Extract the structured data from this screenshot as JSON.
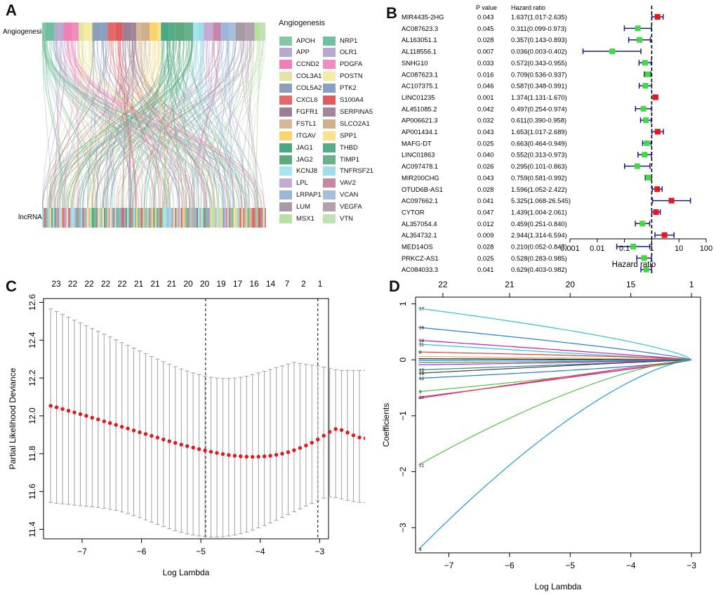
{
  "panels": {
    "A": {
      "letter": "A",
      "top_label": "Angiogenesis",
      "bottom_label": "lncRNA",
      "legend_title": "Angiogenesis"
    },
    "B": {
      "letter": "B",
      "col_p": "P value",
      "col_hr": "Hazard ratio",
      "xlabel": "Hazard ratio"
    },
    "C": {
      "letter": "C",
      "xlabel": "Log Lambda",
      "ylabel": "Partial Likelihood Deviance"
    },
    "D": {
      "letter": "D",
      "xlabel": "Log Lambda",
      "ylabel": "Coefficients"
    }
  },
  "chart_data": [
    {
      "type": "sankey",
      "panel": "A",
      "legend_title": "Angiogenesis",
      "legend": [
        {
          "name": "APOH",
          "color": "#86c7a5"
        },
        {
          "name": "NRP1",
          "color": "#6fc0a1"
        },
        {
          "name": "APP",
          "color": "#b6a8cf"
        },
        {
          "name": "OLR1",
          "color": "#b9a9d0"
        },
        {
          "name": "CCND2",
          "color": "#f07fb5"
        },
        {
          "name": "PDGFA",
          "color": "#ef8ebc"
        },
        {
          "name": "COL3A1",
          "color": "#e6e1a4"
        },
        {
          "name": "POSTN",
          "color": "#f3eca5"
        },
        {
          "name": "COL5A2",
          "color": "#8a9fba"
        },
        {
          "name": "PTK2",
          "color": "#8aa0c2"
        },
        {
          "name": "CXCL6",
          "color": "#e46a6a"
        },
        {
          "name": "S100A4",
          "color": "#e05c5c"
        },
        {
          "name": "FGFR1",
          "color": "#9c7f95"
        },
        {
          "name": "SERPINA5",
          "color": "#a08899"
        },
        {
          "name": "FSTL1",
          "color": "#d6b896"
        },
        {
          "name": "SLCO2A1",
          "color": "#cfb08b"
        },
        {
          "name": "ITGAV",
          "color": "#fbd56b"
        },
        {
          "name": "SPP1",
          "color": "#fde08a"
        },
        {
          "name": "JAG1",
          "color": "#4ba884"
        },
        {
          "name": "THBD",
          "color": "#54ac88"
        },
        {
          "name": "JAG2",
          "color": "#5caa7e"
        },
        {
          "name": "TIMP1",
          "color": "#69b08c"
        },
        {
          "name": "KCNJ8",
          "color": "#a9e2f0"
        },
        {
          "name": "TNFRSF21",
          "color": "#9fdde9"
        },
        {
          "name": "LPL",
          "color": "#c5aad6"
        },
        {
          "name": "VAV2",
          "color": "#c587a3"
        },
        {
          "name": "LRPAP1",
          "color": "#9bb6d8"
        },
        {
          "name": "VCAN",
          "color": "#a4bedc"
        },
        {
          "name": "LUM",
          "color": "#a79aa5"
        },
        {
          "name": "VEGFA",
          "color": "#b3a1ad"
        },
        {
          "name": "MSX1",
          "color": "#b7e1a4"
        },
        {
          "name": "VTN",
          "color": "#bfe2b4"
        }
      ]
    },
    {
      "type": "forest",
      "panel": "B",
      "xscale": "log",
      "xlim": [
        0.001,
        100
      ],
      "xticks": [
        "0.001",
        "0.01",
        "0.1",
        "1",
        "10",
        "100"
      ],
      "reference_line": 1,
      "rows": [
        {
          "gene": "MIR4435-2HG",
          "p": "0.043",
          "hr_text": "1.637(1.017-2.635)",
          "hr": 1.637,
          "lo": 1.017,
          "hi": 2.635
        },
        {
          "gene": "AC087623.3",
          "p": "0.045",
          "hr_text": "0.311(0.099-0.973)",
          "hr": 0.311,
          "lo": 0.099,
          "hi": 0.973
        },
        {
          "gene": "AL163051.1",
          "p": "0.028",
          "hr_text": "0.357(0.143-0.893)",
          "hr": 0.357,
          "lo": 0.143,
          "hi": 0.893
        },
        {
          "gene": "AL118556.1",
          "p": "0.007",
          "hr_text": "0.036(0.003-0.402)",
          "hr": 0.036,
          "lo": 0.003,
          "hi": 0.402
        },
        {
          "gene": "SNHG10",
          "p": "0.033",
          "hr_text": "0.572(0.343-0.955)",
          "hr": 0.572,
          "lo": 0.343,
          "hi": 0.955
        },
        {
          "gene": "AC087623.1",
          "p": "0.016",
          "hr_text": "0.709(0.536-0.937)",
          "hr": 0.709,
          "lo": 0.536,
          "hi": 0.937
        },
        {
          "gene": "AC107375.1",
          "p": "0.046",
          "hr_text": "0.587(0.348-0.991)",
          "hr": 0.587,
          "lo": 0.348,
          "hi": 0.991
        },
        {
          "gene": "LINC01235",
          "p": "0.001",
          "hr_text": "1.374(1.131-1.670)",
          "hr": 1.374,
          "lo": 1.131,
          "hi": 1.67
        },
        {
          "gene": "AL451085.2",
          "p": "0.042",
          "hr_text": "0.497(0.254-0.974)",
          "hr": 0.497,
          "lo": 0.254,
          "hi": 0.974
        },
        {
          "gene": "AP006621.3",
          "p": "0.032",
          "hr_text": "0.611(0.390-0.958)",
          "hr": 0.611,
          "lo": 0.39,
          "hi": 0.958
        },
        {
          "gene": "AP001434.1",
          "p": "0.043",
          "hr_text": "1.653(1.017-2.689)",
          "hr": 1.653,
          "lo": 1.017,
          "hi": 2.689
        },
        {
          "gene": "MAFG-DT",
          "p": "0.025",
          "hr_text": "0.663(0.464-0.949)",
          "hr": 0.663,
          "lo": 0.464,
          "hi": 0.949
        },
        {
          "gene": "LINC01863",
          "p": "0.040",
          "hr_text": "0.552(0.313-0.973)",
          "hr": 0.552,
          "lo": 0.313,
          "hi": 0.973
        },
        {
          "gene": "AC097478.1",
          "p": "0.026",
          "hr_text": "0.295(0.101-0.863)",
          "hr": 0.295,
          "lo": 0.101,
          "hi": 0.863
        },
        {
          "gene": "MIR200CHG",
          "p": "0.043",
          "hr_text": "0.759(0.581-0.992)",
          "hr": 0.759,
          "lo": 0.581,
          "hi": 0.992
        },
        {
          "gene": "OTUD6B-AS1",
          "p": "0.028",
          "hr_text": "1.596(1.052-2.422)",
          "hr": 1.596,
          "lo": 1.052,
          "hi": 2.422
        },
        {
          "gene": "AC097662.1",
          "p": "0.041",
          "hr_text": "5.325(1.068-26.545)",
          "hr": 5.325,
          "lo": 1.068,
          "hi": 26.545
        },
        {
          "gene": "CYTOR",
          "p": "0.047",
          "hr_text": "1.439(1.004-2.061)",
          "hr": 1.439,
          "lo": 1.004,
          "hi": 2.061
        },
        {
          "gene": "AL357054.4",
          "p": "0.012",
          "hr_text": "0.459(0.251-0.840)",
          "hr": 0.459,
          "lo": 0.251,
          "hi": 0.84
        },
        {
          "gene": "AL354732.1",
          "p": "0.009",
          "hr_text": "2.944(1.314-6.594)",
          "hr": 2.944,
          "lo": 1.314,
          "hi": 6.594
        },
        {
          "gene": "MED14OS",
          "p": "0.028",
          "hr_text": "0.210(0.052-0.847)",
          "hr": 0.21,
          "lo": 0.052,
          "hi": 0.847
        },
        {
          "gene": "PRKCZ-AS1",
          "p": "0.025",
          "hr_text": "0.528(0.283-0.985)",
          "hr": 0.528,
          "lo": 0.283,
          "hi": 0.985
        },
        {
          "gene": "AC084033.3",
          "p": "0.041",
          "hr_text": "0.629(0.403-0.982)",
          "hr": 0.629,
          "lo": 0.403,
          "hi": 0.982
        }
      ],
      "colors": {
        "risk": "#e8141e",
        "protective": "#3fdc3f",
        "ci": "#1a1a8c"
      }
    },
    {
      "type": "scatter",
      "panel": "C",
      "xlabel": "Log Lambda",
      "ylabel": "Partial Likelihood Deviance",
      "xlim": [
        -7.65,
        -2.85
      ],
      "ylim": [
        11.35,
        12.62
      ],
      "xticks": [
        "-7",
        "-6",
        "-5",
        "-4",
        "-3"
      ],
      "yticks": [
        "11.4",
        "11.6",
        "11.8",
        "12.0",
        "12.2",
        "12.4",
        "12.6"
      ],
      "top_axis_labels": [
        "23",
        "22",
        "22",
        "22",
        "22",
        "21",
        "21",
        "21",
        "20",
        "20",
        "19",
        "17",
        "16",
        "14",
        "7",
        "2",
        "1"
      ],
      "vlines": [
        -4.92,
        -3.03
      ],
      "x_start": -7.53,
      "x_step": 0.1,
      "mean": [
        12.053,
        12.045,
        12.036,
        12.027,
        12.018,
        12.009,
        12.0,
        11.99,
        11.981,
        11.971,
        11.962,
        11.952,
        11.942,
        11.933,
        11.923,
        11.913,
        11.904,
        11.894,
        11.885,
        11.875,
        11.866,
        11.857,
        11.848,
        11.84,
        11.832,
        11.824,
        11.817,
        11.81,
        11.804,
        11.798,
        11.793,
        11.789,
        11.786,
        11.784,
        11.783,
        11.784,
        11.786,
        11.789,
        11.794,
        11.8,
        11.808,
        11.818,
        11.83,
        11.843,
        11.858,
        11.875,
        11.895,
        11.915,
        11.93,
        11.925,
        11.912,
        11.897,
        11.886,
        11.881,
        11.884,
        11.887
      ],
      "upper": [
        12.565,
        12.551,
        12.536,
        12.521,
        12.506,
        12.491,
        12.476,
        12.461,
        12.447,
        12.432,
        12.417,
        12.402,
        12.387,
        12.373,
        12.358,
        12.343,
        12.329,
        12.314,
        12.3,
        12.286,
        12.273,
        12.26,
        12.248,
        12.237,
        12.227,
        12.218,
        12.21,
        12.204,
        12.2,
        12.198,
        12.198,
        12.2,
        12.204,
        12.21,
        12.218,
        12.227,
        12.236,
        12.245,
        12.255,
        12.264,
        12.274,
        12.283,
        12.277,
        12.272,
        12.268,
        12.264,
        12.258,
        12.251,
        12.244,
        12.24,
        12.24,
        12.24,
        12.24,
        12.24,
        12.24,
        12.24
      ],
      "lower": [
        11.542,
        11.538,
        11.535,
        11.532,
        11.528,
        11.525,
        11.522,
        11.519,
        11.516,
        11.511,
        11.506,
        11.5,
        11.492,
        11.483,
        11.473,
        11.462,
        11.45,
        11.438,
        11.426,
        11.414,
        11.403,
        11.393,
        11.384,
        11.376,
        11.37,
        11.365,
        11.362,
        11.36,
        11.36,
        11.361,
        11.365,
        11.37,
        11.377,
        11.386,
        11.396,
        11.408,
        11.42,
        11.434,
        11.448,
        11.463,
        11.478,
        11.493,
        11.508,
        11.523,
        11.537,
        11.551,
        11.565,
        11.572,
        11.568,
        11.561,
        11.553,
        11.547,
        11.543,
        11.541,
        11.54,
        11.54
      ],
      "point_color": "#e8141e",
      "bar_color": "#a0a0a0"
    },
    {
      "type": "line",
      "panel": "D",
      "xlabel": "Log Lambda",
      "ylabel": "Coefficients",
      "xlim": [
        -7.55,
        -2.85
      ],
      "ylim": [
        -3.45,
        1.12
      ],
      "xticks": [
        "-7",
        "-6",
        "-5",
        "-4",
        "-3"
      ],
      "yticks": [
        "-3",
        "-2",
        "-1",
        "0",
        "1"
      ],
      "top_axis_labels": [
        "22",
        "21",
        "20",
        "15",
        "1"
      ],
      "top_axis_x": [
        -7.1,
        -6.0,
        -5.0,
        -4.0,
        -3.0
      ],
      "x_end": -3.0,
      "series": [
        {
          "label": "17",
          "start": 0.92,
          "color": "#2ec7cf"
        },
        {
          "label": "16",
          "start": 0.58,
          "color": "#1f7fd6"
        },
        {
          "label": "18",
          "start": 0.35,
          "color": "#c41cc4"
        },
        {
          "label": "11",
          "start": 0.28,
          "color": "#2ec7cf"
        },
        {
          "label": "8",
          "start": 0.14,
          "color": "#e53a3a"
        },
        {
          "label": "",
          "start": 0.06,
          "color": "#e9b54a"
        },
        {
          "label": "",
          "start": 0.02,
          "color": "#222222"
        },
        {
          "label": "",
          "start": -0.01,
          "color": "#1f7fd6"
        },
        {
          "label": "",
          "start": -0.05,
          "color": "#2ea84a"
        },
        {
          "label": "",
          "start": -0.09,
          "color": "#c41cc4"
        },
        {
          "label": "15",
          "start": -0.18,
          "color": "#2e8b8b"
        },
        {
          "label": "19",
          "start": -0.24,
          "color": "#444444"
        },
        {
          "label": "12",
          "start": -0.33,
          "color": "#1f7fd6"
        },
        {
          "label": "3",
          "start": -0.57,
          "color": "#58c24a"
        },
        {
          "label": "20",
          "start": -0.67,
          "color": "#c41cc4"
        },
        {
          "label": "",
          "start": -0.69,
          "color": "#e53a3a"
        },
        {
          "label": "21",
          "start": -1.88,
          "color": "#58c24a"
        },
        {
          "label": "4",
          "start": -3.39,
          "color": "#1f9ad6"
        }
      ]
    }
  ]
}
